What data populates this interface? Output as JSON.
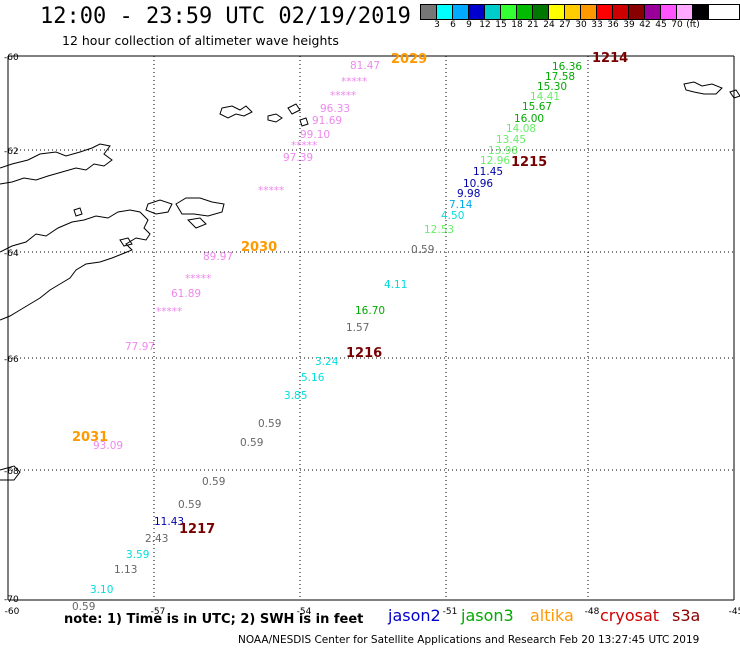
{
  "title": "12:00 - 23:59 UTC 02/19/2019",
  "subtitle": "12 hour collection of altimeter wave heights",
  "legend": {
    "colors": [
      "#777777",
      "#00ffff",
      "#00aaff",
      "#0000cc",
      "#00cccc",
      "#33ff33",
      "#00bb00",
      "#007700",
      "#ffff00",
      "#ffcc00",
      "#ff9900",
      "#ff0000",
      "#cc0000",
      "#880000",
      "#990099",
      "#ff55ff",
      "#ffaaff",
      "#000000"
    ],
    "ticks": [
      "3",
      "6",
      "9",
      "12",
      "15",
      "18",
      "21",
      "24",
      "27",
      "30",
      "33",
      "36",
      "39",
      "42",
      "45",
      "70",
      "(ft)"
    ]
  },
  "axes": {
    "lat_labels": [
      "-60",
      "-62",
      "-64",
      "-66",
      "-68",
      "-70"
    ],
    "lon_labels": [
      "-60",
      "-57",
      "-54",
      "-51",
      "-48",
      "-45"
    ]
  },
  "tracks": [
    {
      "label": "2029",
      "label_color": "#ff9900"
    },
    {
      "label": "1214",
      "label_color": "#770000"
    },
    {
      "label": "1215",
      "label_color": "#770000"
    },
    {
      "label": "2030",
      "label_color": "#ff9900"
    },
    {
      "label": "1216",
      "label_color": "#770000"
    },
    {
      "label": "2031",
      "label_color": "#ff9900"
    },
    {
      "label": "1217",
      "label_color": "#770000"
    }
  ],
  "observations": [
    {
      "text": "81.47",
      "color": "#ee88ee"
    },
    {
      "text": "*****",
      "color": "#ee88ee"
    },
    {
      "text": "*****",
      "color": "#ee88ee"
    },
    {
      "text": "96.33",
      "color": "#ee88ee"
    },
    {
      "text": "91.69",
      "color": "#ee88ee"
    },
    {
      "text": "99.10",
      "color": "#ee88ee"
    },
    {
      "text": "*****",
      "color": "#ee88ee"
    },
    {
      "text": "97.39",
      "color": "#ee88ee"
    },
    {
      "text": "*****",
      "color": "#ee88ee"
    },
    {
      "text": "89.97",
      "color": "#ee88ee"
    },
    {
      "text": "*****",
      "color": "#ee88ee"
    },
    {
      "text": "61.89",
      "color": "#ee88ee"
    },
    {
      "text": "*****",
      "color": "#ee88ee"
    },
    {
      "text": "77.97",
      "color": "#ee88ee"
    },
    {
      "text": "93.09",
      "color": "#ee88ee"
    },
    {
      "text": "16.36",
      "color": "#00aa00"
    },
    {
      "text": "17.58",
      "color": "#00aa00"
    },
    {
      "text": "15.30",
      "color": "#00aa00"
    },
    {
      "text": "14.41",
      "color": "#66ee66"
    },
    {
      "text": "15.67",
      "color": "#00aa00"
    },
    {
      "text": "16.00",
      "color": "#00aa00"
    },
    {
      "text": "14.08",
      "color": "#66ee66"
    },
    {
      "text": "13.45",
      "color": "#66ee66"
    },
    {
      "text": "13.98",
      "color": "#66ee66"
    },
    {
      "text": "12.96",
      "color": "#66ee66"
    },
    {
      "text": "11.45",
      "color": "#0000aa"
    },
    {
      "text": "10.96",
      "color": "#0000aa"
    },
    {
      "text": "9.98",
      "color": "#0000aa"
    },
    {
      "text": "7.14",
      "color": "#00aaee"
    },
    {
      "text": "4.50",
      "color": "#00dddd"
    },
    {
      "text": "12.53",
      "color": "#66ee66"
    },
    {
      "text": "0.59",
      "color": "#666666"
    },
    {
      "text": "4.11",
      "color": "#00dddd"
    },
    {
      "text": "16.70",
      "color": "#00aa00"
    },
    {
      "text": "1.57",
      "color": "#666666"
    },
    {
      "text": "3.24",
      "color": "#00dddd"
    },
    {
      "text": "5.16",
      "color": "#00dddd"
    },
    {
      "text": "3.85",
      "color": "#00dddd"
    },
    {
      "text": "0.59",
      "color": "#666666"
    },
    {
      "text": "0.59",
      "color": "#666666"
    },
    {
      "text": "0.59",
      "color": "#666666"
    },
    {
      "text": "0.59",
      "color": "#666666"
    },
    {
      "text": "11.43",
      "color": "#0000aa"
    },
    {
      "text": "2.43",
      "color": "#666666"
    },
    {
      "text": "3.59",
      "color": "#00dddd"
    },
    {
      "text": "1.13",
      "color": "#666666"
    },
    {
      "text": "3.10",
      "color": "#00dddd"
    },
    {
      "text": "0.59",
      "color": "#666666"
    }
  ],
  "note": "note: 1) Time is in UTC; 2) SWH is in feet",
  "satellites": [
    {
      "name": "jason2",
      "color": "#0000cc"
    },
    {
      "name": "jason3",
      "color": "#00aa00"
    },
    {
      "name": "altika",
      "color": "#ff9900"
    },
    {
      "name": "cryosat",
      "color": "#cc0000"
    },
    {
      "name": "s3a",
      "color": "#880000"
    }
  ],
  "credit": "NOAA/NESDIS Center for Satellite Applications and Research    Feb 20 13:27:45 UTC 2019"
}
